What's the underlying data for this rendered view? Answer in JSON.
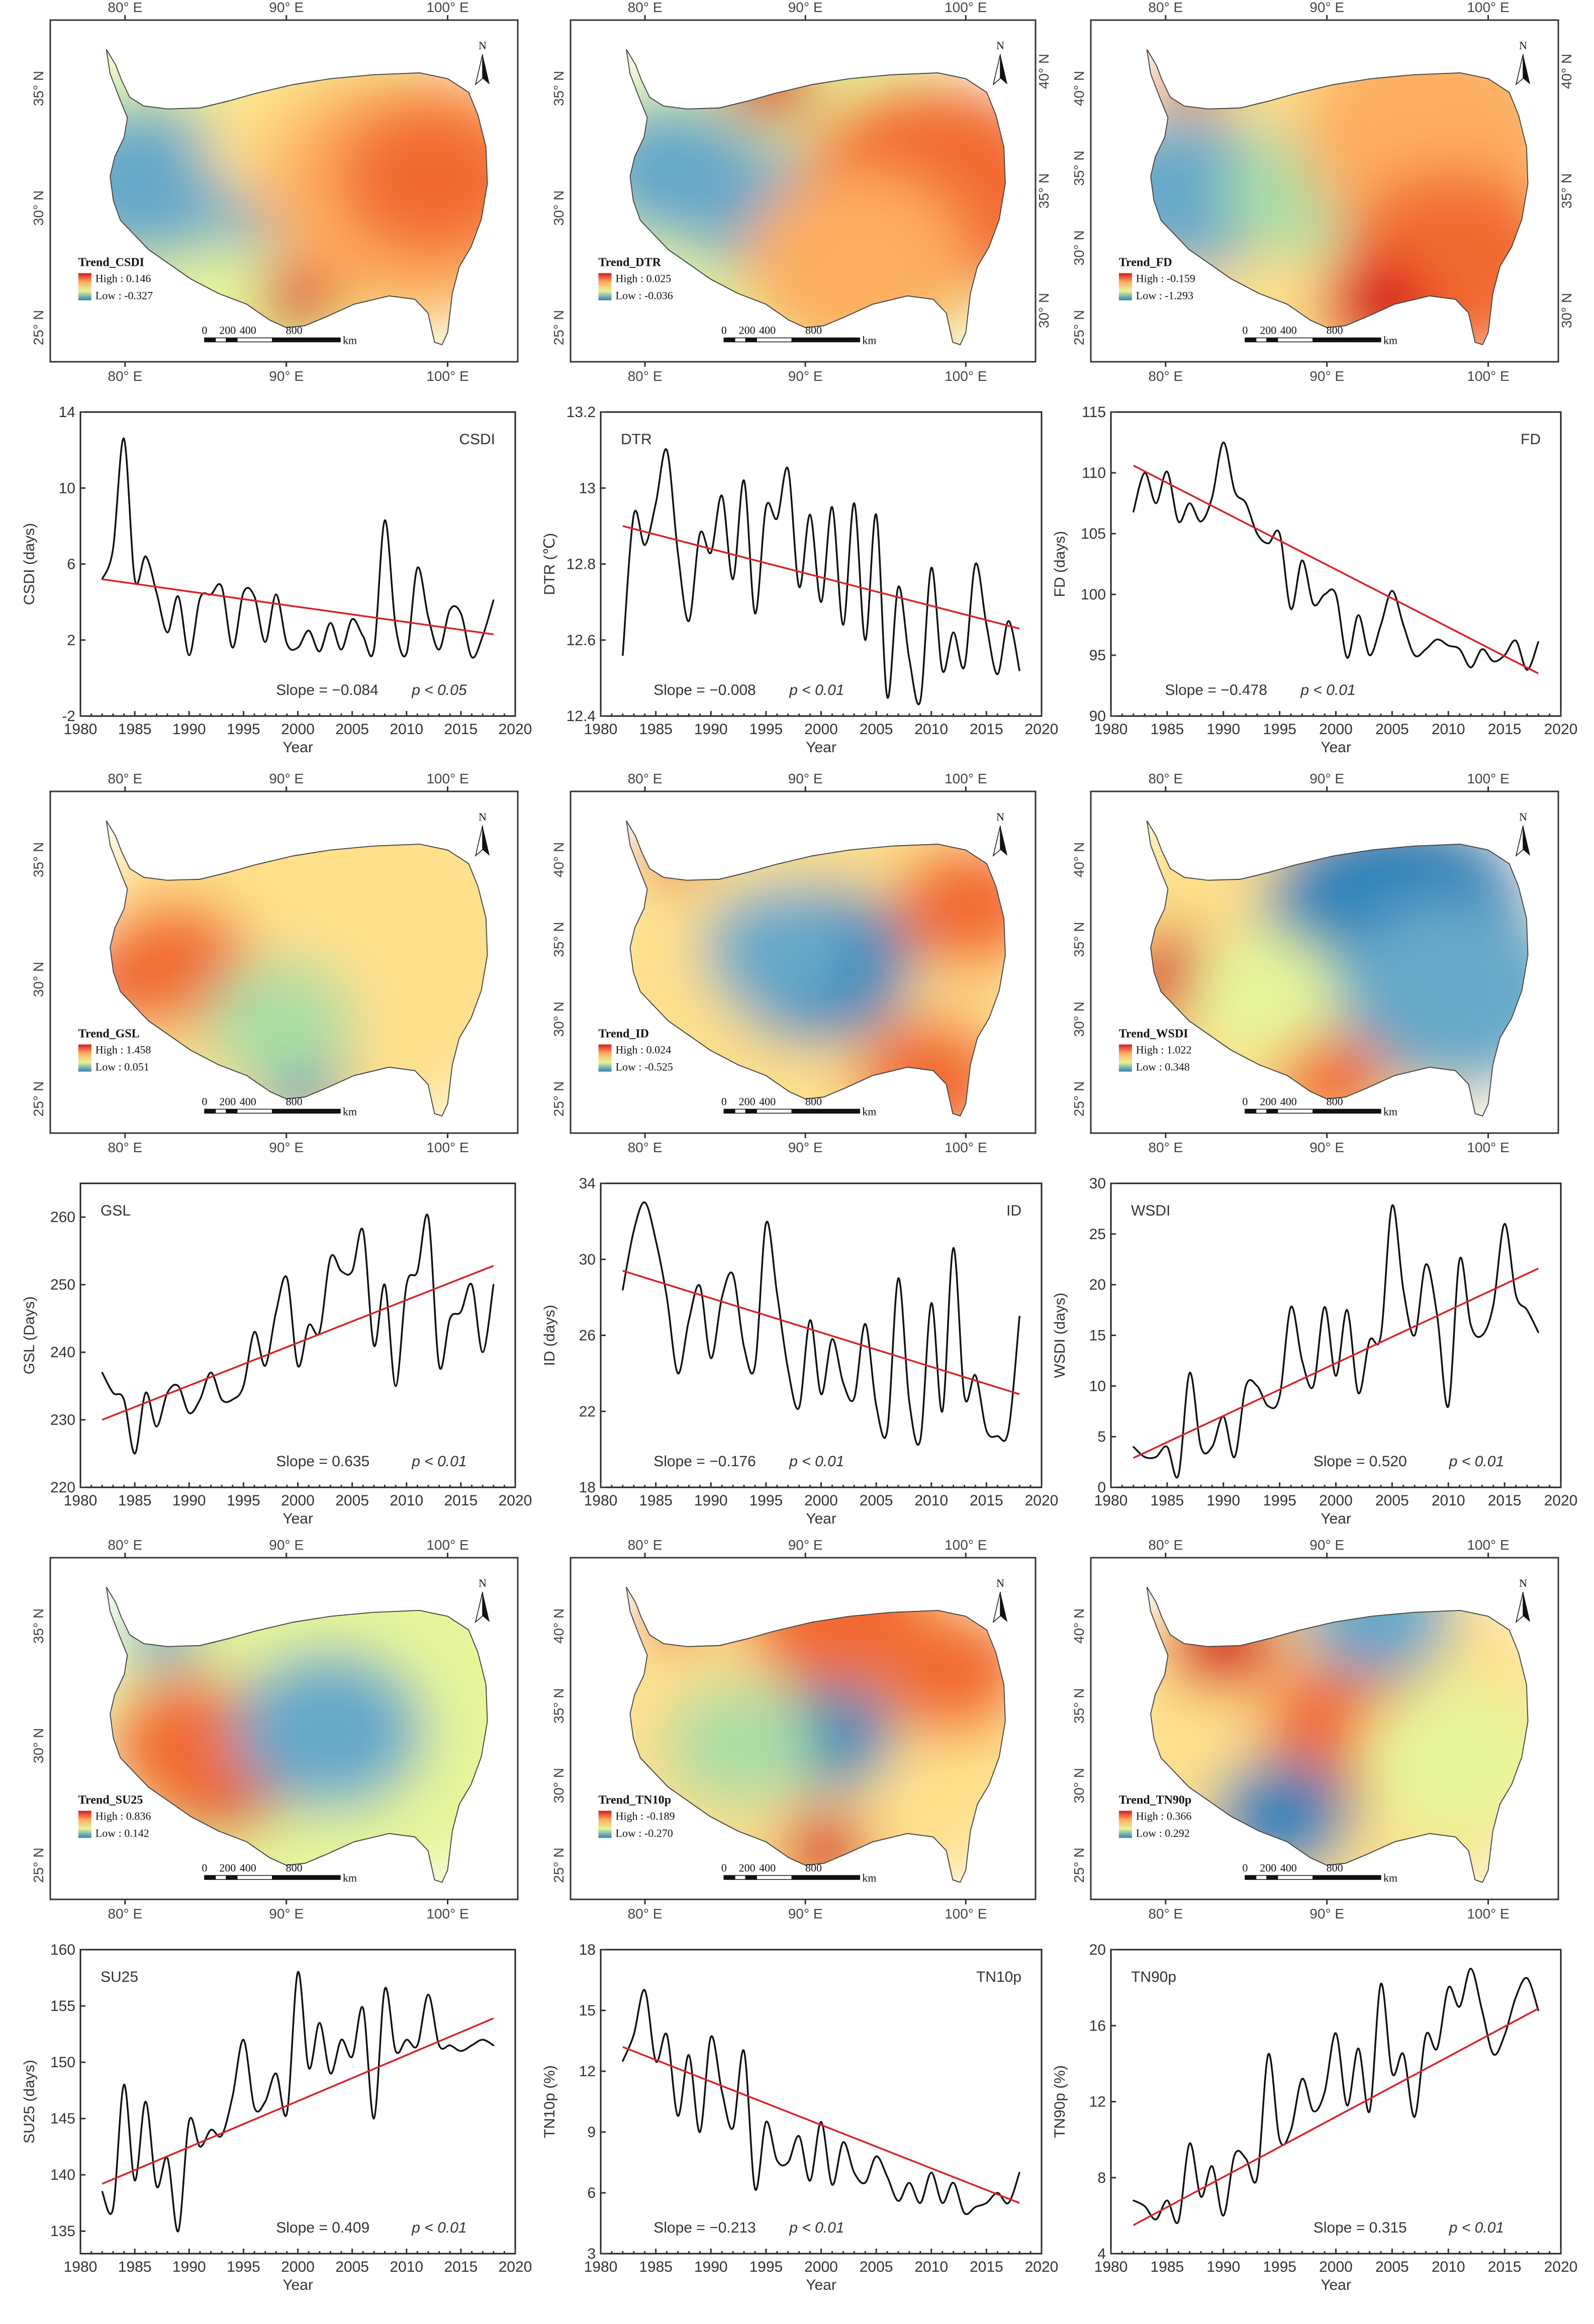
{
  "figure": {
    "common": {
      "xlabel": "Year",
      "xticks": [
        "1980",
        "1985",
        "1990",
        "1995",
        "2000",
        "2005",
        "2010",
        "2015",
        "2020"
      ],
      "map_lon_labels": [
        "80° E",
        "90° E",
        "100° E"
      ],
      "scale_labels": [
        "0",
        "200",
        "400",
        "800"
      ],
      "scale_unit": "km",
      "north_label": "N",
      "high_prefix": "High : ",
      "low_prefix": "Low : ",
      "palette": [
        "#d7191c",
        "#f26b32",
        "#fdae61",
        "#fee08b",
        "#e6f598",
        "#abdda4",
        "#66a9c9",
        "#2b83ba"
      ]
    },
    "maps": [
      {
        "key": "CSDI",
        "title": "Trend_CSDI",
        "high": "0.146",
        "low": "-0.327",
        "lat_left": [
          "35° N",
          "30° N",
          "25° N"
        ],
        "lat_right": []
      },
      {
        "key": "DTR",
        "title": "Trend_DTR",
        "high": "0.025",
        "low": "-0.036",
        "lat_left": [
          "35° N",
          "30° N",
          "25° N"
        ],
        "lat_right": [
          "40° N",
          "35° N",
          "30° N"
        ]
      },
      {
        "key": "FD",
        "title": "Trend_FD",
        "high": "-0.159",
        "low": "-1.293",
        "lat_left": [
          "40° N",
          "35° N",
          "30° N",
          "25° N"
        ],
        "lat_right": [
          "40° N",
          "35° N",
          "30° N"
        ]
      },
      {
        "key": "GSL",
        "title": "Trend_GSL",
        "high": "1.458",
        "low": "0.051",
        "lat_left": [
          "35° N",
          "30° N",
          "25° N"
        ],
        "lat_right": []
      },
      {
        "key": "ID",
        "title": "Trend_ID",
        "high": "0.024",
        "low": "-0.525",
        "lat_left": [
          "40° N",
          "35° N",
          "30° N",
          "25° N"
        ],
        "lat_right": []
      },
      {
        "key": "WSDI",
        "title": "Trend_WSDI",
        "high": "1.022",
        "low": "0.348",
        "lat_left": [
          "40° N",
          "35° N",
          "30° N",
          "25° N"
        ],
        "lat_right": []
      },
      {
        "key": "SU25",
        "title": "Trend_SU25",
        "high": "0.836",
        "low": "0.142",
        "lat_left": [
          "35° N",
          "30° N",
          "25° N"
        ],
        "lat_right": []
      },
      {
        "key": "TN10p",
        "title": "Trend_TN10p",
        "high": "-0.189",
        "low": "-0.270",
        "lat_left": [
          "40° N",
          "35° N",
          "30° N",
          "25° N"
        ],
        "lat_right": []
      },
      {
        "key": "TN90p",
        "title": "Trend_TN90p",
        "high": "0.366",
        "low": "0.292",
        "lat_left": [
          "40° N",
          "35° N",
          "30° N",
          "25° N"
        ],
        "lat_right": []
      }
    ]
  },
  "chart_data": [
    {
      "type": "line",
      "title": "CSDI",
      "ylabel": "CSDI (days)",
      "xlim": [
        1980,
        2020
      ],
      "ylim": [
        -2,
        14
      ],
      "yticks": [
        -2,
        2,
        6,
        10,
        14
      ],
      "x": [
        1982,
        1983,
        1984,
        1985,
        1986,
        1987,
        1988,
        1989,
        1990,
        1991,
        1992,
        1993,
        1994,
        1995,
        1996,
        1997,
        1998,
        1999,
        2000,
        2001,
        2002,
        2003,
        2004,
        2005,
        2006,
        2007,
        2008,
        2009,
        2010,
        2011,
        2012,
        2013,
        2014,
        2015,
        2016,
        2017,
        2018
      ],
      "values": [
        5.2,
        6.8,
        12.6,
        5.2,
        6.4,
        4.5,
        2.4,
        4.3,
        1.2,
        4.2,
        4.4,
        4.8,
        1.6,
        4.5,
        4.3,
        1.9,
        4.4,
        1.8,
        1.6,
        2.5,
        1.4,
        2.9,
        1.5,
        3.1,
        2.2,
        1.5,
        8.3,
        2.7,
        1.3,
        5.8,
        3.2,
        1.5,
        3.6,
        3.4,
        1.1,
        2.2,
        4.1
      ],
      "trend": {
        "start": [
          1982,
          5.2
        ],
        "end": [
          2018,
          2.3
        ]
      },
      "annotation": {
        "slope": "Slope = −0.084",
        "p": "p < 0.05"
      }
    },
    {
      "type": "line",
      "title": "DTR",
      "ylabel": "DTR (℃)",
      "xlim": [
        1980,
        2020
      ],
      "ylim": [
        12.4,
        13.2
      ],
      "yticks": [
        12.4,
        12.6,
        12.8,
        13.0,
        13.2
      ],
      "x": [
        1982,
        1983,
        1984,
        1985,
        1986,
        1987,
        1988,
        1989,
        1990,
        1991,
        1992,
        1993,
        1994,
        1995,
        1996,
        1997,
        1998,
        1999,
        2000,
        2001,
        2002,
        2003,
        2004,
        2005,
        2006,
        2007,
        2008,
        2009,
        2010,
        2011,
        2012,
        2013,
        2014,
        2015,
        2016,
        2017,
        2018
      ],
      "values": [
        12.56,
        12.93,
        12.85,
        12.96,
        13.1,
        12.83,
        12.65,
        12.88,
        12.83,
        12.98,
        12.76,
        13.02,
        12.67,
        12.95,
        12.92,
        13.05,
        12.74,
        12.93,
        12.7,
        12.95,
        12.64,
        12.96,
        12.6,
        12.93,
        12.45,
        12.74,
        12.55,
        12.44,
        12.79,
        12.52,
        12.62,
        12.53,
        12.8,
        12.64,
        12.51,
        12.65,
        12.52
      ],
      "trend": {
        "start": [
          1982,
          12.9
        ],
        "end": [
          2018,
          12.63
        ]
      },
      "annotation": {
        "slope": "Slope = −0.008",
        "p": "p < 0.01"
      }
    },
    {
      "type": "line",
      "title": "FD",
      "ylabel": "FD (days)",
      "xlim": [
        1980,
        2020
      ],
      "ylim": [
        90,
        115
      ],
      "yticks": [
        90,
        95,
        100,
        105,
        110,
        115
      ],
      "x": [
        1982,
        1983,
        1984,
        1985,
        1986,
        1987,
        1988,
        1989,
        1990,
        1991,
        1992,
        1993,
        1994,
        1995,
        1996,
        1997,
        1998,
        1999,
        2000,
        2001,
        2002,
        2003,
        2004,
        2005,
        2006,
        2007,
        2008,
        2009,
        2010,
        2011,
        2012,
        2013,
        2014,
        2015,
        2016,
        2017,
        2018
      ],
      "values": [
        106.8,
        110.0,
        107.5,
        110.1,
        106.0,
        107.5,
        106.0,
        108.0,
        112.5,
        108.5,
        107.5,
        105.0,
        104.2,
        105.0,
        98.8,
        102.8,
        99.2,
        100.0,
        100.0,
        94.8,
        98.3,
        95.0,
        97.5,
        100.3,
        97.5,
        95.0,
        95.5,
        96.3,
        95.8,
        95.5,
        94.0,
        95.5,
        94.5,
        95.0,
        96.2,
        93.8,
        96.1
      ],
      "trend": {
        "start": [
          1982,
          110.6
        ],
        "end": [
          2018,
          93.5
        ]
      },
      "annotation": {
        "slope": "Slope = −0.478",
        "p": "p < 0.01"
      }
    },
    {
      "type": "line",
      "title": "GSL",
      "ylabel": "GSL (Days)",
      "xlim": [
        1980,
        2020
      ],
      "ylim": [
        220,
        265
      ],
      "yticks": [
        220,
        230,
        240,
        250,
        260
      ],
      "x": [
        1982,
        1983,
        1984,
        1985,
        1986,
        1987,
        1988,
        1989,
        1990,
        1991,
        1992,
        1993,
        1994,
        1995,
        1996,
        1997,
        1998,
        1999,
        2000,
        2001,
        2002,
        2003,
        2004,
        2005,
        2006,
        2007,
        2008,
        2009,
        2010,
        2011,
        2012,
        2013,
        2014,
        2015,
        2016,
        2017,
        2018
      ],
      "values": [
        237.0,
        234.0,
        233.0,
        225.0,
        234.0,
        229.0,
        234.0,
        235.0,
        231.0,
        233.0,
        237.0,
        233.0,
        233.0,
        235.0,
        243.0,
        238.0,
        246.0,
        251.0,
        238.0,
        244.0,
        243.0,
        254.0,
        252.0,
        252.0,
        258.0,
        241.0,
        250.0,
        235.0,
        250.0,
        252.0,
        260.0,
        238.0,
        245.0,
        246.0,
        250.0,
        240.0,
        250.0
      ],
      "trend": {
        "start": [
          1982,
          230.0
        ],
        "end": [
          2018,
          252.8
        ]
      },
      "annotation": {
        "slope": "Slope = 0.635",
        "p": "p < 0.01"
      }
    },
    {
      "type": "line",
      "title": "ID",
      "ylabel": "ID (days)",
      "xlim": [
        1980,
        2020
      ],
      "ylim": [
        18,
        34
      ],
      "yticks": [
        18,
        22,
        26,
        30,
        34
      ],
      "x": [
        1982,
        1983,
        1984,
        1985,
        1986,
        1987,
        1988,
        1989,
        1990,
        1991,
        1992,
        1993,
        1994,
        1995,
        1996,
        1997,
        1998,
        1999,
        2000,
        2001,
        2002,
        2003,
        2004,
        2005,
        2006,
        2007,
        2008,
        2009,
        2010,
        2011,
        2012,
        2013,
        2014,
        2015,
        2016,
        2017,
        2018
      ],
      "values": [
        28.4,
        31.5,
        33.0,
        31.0,
        28.0,
        24.0,
        26.8,
        28.6,
        24.8,
        28.0,
        29.2,
        25.4,
        24.4,
        31.9,
        28.2,
        24.2,
        22.2,
        26.8,
        22.9,
        25.8,
        23.5,
        22.7,
        26.6,
        22.3,
        21.0,
        29.0,
        22.5,
        20.5,
        27.7,
        22.0,
        30.6,
        22.8,
        23.9,
        21.0,
        20.7,
        21.0,
        27.0
      ],
      "trend": {
        "start": [
          1982,
          29.4
        ],
        "end": [
          2018,
          22.9
        ]
      },
      "annotation": {
        "slope": "Slope = −0.176",
        "p": "p < 0.01"
      }
    },
    {
      "type": "line",
      "title": "WSDI",
      "ylabel": "WSDI (days)",
      "xlim": [
        1980,
        2020
      ],
      "ylim": [
        0,
        30
      ],
      "yticks": [
        0,
        5,
        10,
        15,
        20,
        25,
        30
      ],
      "x": [
        1982,
        1983,
        1984,
        1985,
        1986,
        1987,
        1988,
        1989,
        1990,
        1991,
        1992,
        1993,
        1994,
        1995,
        1996,
        1997,
        1998,
        1999,
        2000,
        2001,
        2002,
        2003,
        2004,
        2005,
        2006,
        2007,
        2008,
        2009,
        2010,
        2011,
        2012,
        2013,
        2014,
        2015,
        2016,
        2017,
        2018
      ],
      "values": [
        4.0,
        3.0,
        3.0,
        4.0,
        1.2,
        11.3,
        4.0,
        4.0,
        7.0,
        3.0,
        10.0,
        10.0,
        8.0,
        9.0,
        17.8,
        12.5,
        10.0,
        17.8,
        11.0,
        17.5,
        9.3,
        14.5,
        15.0,
        27.8,
        19.5,
        15.0,
        22.0,
        17.0,
        8.0,
        22.5,
        16.0,
        15.0,
        18.0,
        26.0,
        19.0,
        17.5,
        15.3
      ],
      "trend": {
        "start": [
          1982,
          2.9
        ],
        "end": [
          2018,
          21.6
        ]
      },
      "annotation": {
        "slope": "Slope = 0.520",
        "p": "p < 0.01"
      }
    },
    {
      "type": "line",
      "title": "SU25",
      "ylabel": "SU25 (days)",
      "xlim": [
        1980,
        2020
      ],
      "ylim": [
        133,
        160
      ],
      "yticks": [
        135,
        140,
        145,
        150,
        155,
        160
      ],
      "x": [
        1982,
        1983,
        1984,
        1985,
        1986,
        1987,
        1988,
        1989,
        1990,
        1991,
        1992,
        1993,
        1994,
        1995,
        1996,
        1997,
        1998,
        1999,
        2000,
        2001,
        2002,
        2003,
        2004,
        2005,
        2006,
        2007,
        2008,
        2009,
        2010,
        2011,
        2012,
        2013,
        2014,
        2015,
        2016,
        2017,
        2018
      ],
      "values": [
        138.5,
        137.0,
        148.0,
        139.5,
        146.5,
        139.0,
        141.5,
        135.0,
        144.8,
        142.5,
        144.0,
        143.5,
        147.0,
        152.0,
        146.0,
        146.5,
        149.0,
        145.5,
        158.0,
        149.5,
        153.5,
        149.0,
        152.0,
        150.5,
        154.8,
        145.0,
        156.5,
        151.0,
        152.0,
        151.5,
        156.0,
        151.5,
        151.5,
        151.0,
        151.5,
        152.0,
        151.5
      ],
      "trend": {
        "start": [
          1982,
          139.2
        ],
        "end": [
          2018,
          153.9
        ]
      },
      "annotation": {
        "slope": "Slope = 0.409",
        "p": "p < 0.01"
      }
    },
    {
      "type": "line",
      "title": "TN10p",
      "ylabel": "TN10p (%)",
      "xlim": [
        1980,
        2020
      ],
      "ylim": [
        3,
        18
      ],
      "yticks": [
        3,
        6,
        9,
        12,
        15,
        18
      ],
      "x": [
        1982,
        1983,
        1984,
        1985,
        1986,
        1987,
        1988,
        1989,
        1990,
        1991,
        1992,
        1993,
        1994,
        1995,
        1996,
        1997,
        1998,
        1999,
        2000,
        2001,
        2002,
        2003,
        2004,
        2005,
        2006,
        2007,
        2008,
        2009,
        2010,
        2011,
        2012,
        2013,
        2014,
        2015,
        2016,
        2017,
        2018
      ],
      "values": [
        12.5,
        13.8,
        16.0,
        12.5,
        13.8,
        9.8,
        12.8,
        9.0,
        13.7,
        11.0,
        9.2,
        13.0,
        6.2,
        9.5,
        7.6,
        7.5,
        8.8,
        6.6,
        9.5,
        6.4,
        8.5,
        7.0,
        6.5,
        7.8,
        6.8,
        5.6,
        6.5,
        5.5,
        7.0,
        5.5,
        6.5,
        5.0,
        5.3,
        5.5,
        6.0,
        5.5,
        7.0
      ],
      "trend": {
        "start": [
          1982,
          13.2
        ],
        "end": [
          2018,
          5.5
        ]
      },
      "annotation": {
        "slope": "Slope = −0.213",
        "p": "p < 0.01"
      }
    },
    {
      "type": "line",
      "title": "TN90p",
      "ylabel": "TN90p (%)",
      "xlim": [
        1980,
        2020
      ],
      "ylim": [
        4,
        20
      ],
      "yticks": [
        4,
        8,
        12,
        16,
        20
      ],
      "x": [
        1982,
        1983,
        1984,
        1985,
        1986,
        1987,
        1988,
        1989,
        1990,
        1991,
        1992,
        1993,
        1994,
        1995,
        1996,
        1997,
        1998,
        1999,
        2000,
        2001,
        2002,
        2003,
        2004,
        2005,
        2006,
        2007,
        2008,
        2009,
        2010,
        2011,
        2012,
        2013,
        2014,
        2015,
        2016,
        2017,
        2018
      ],
      "values": [
        6.8,
        6.5,
        5.8,
        6.8,
        5.7,
        9.8,
        7.0,
        8.6,
        6.0,
        9.2,
        9.0,
        8.0,
        14.5,
        10.0,
        10.5,
        13.2,
        11.5,
        12.5,
        15.6,
        11.8,
        14.8,
        11.5,
        18.2,
        13.5,
        14.5,
        11.2,
        15.5,
        14.8,
        18.0,
        17.0,
        19.0,
        16.8,
        14.5,
        15.5,
        17.5,
        18.5,
        16.8
      ],
      "trend": {
        "start": [
          1982,
          5.5
        ],
        "end": [
          2018,
          16.9
        ]
      },
      "annotation": {
        "slope": "Slope = 0.315",
        "p": "p < 0.01"
      }
    }
  ]
}
